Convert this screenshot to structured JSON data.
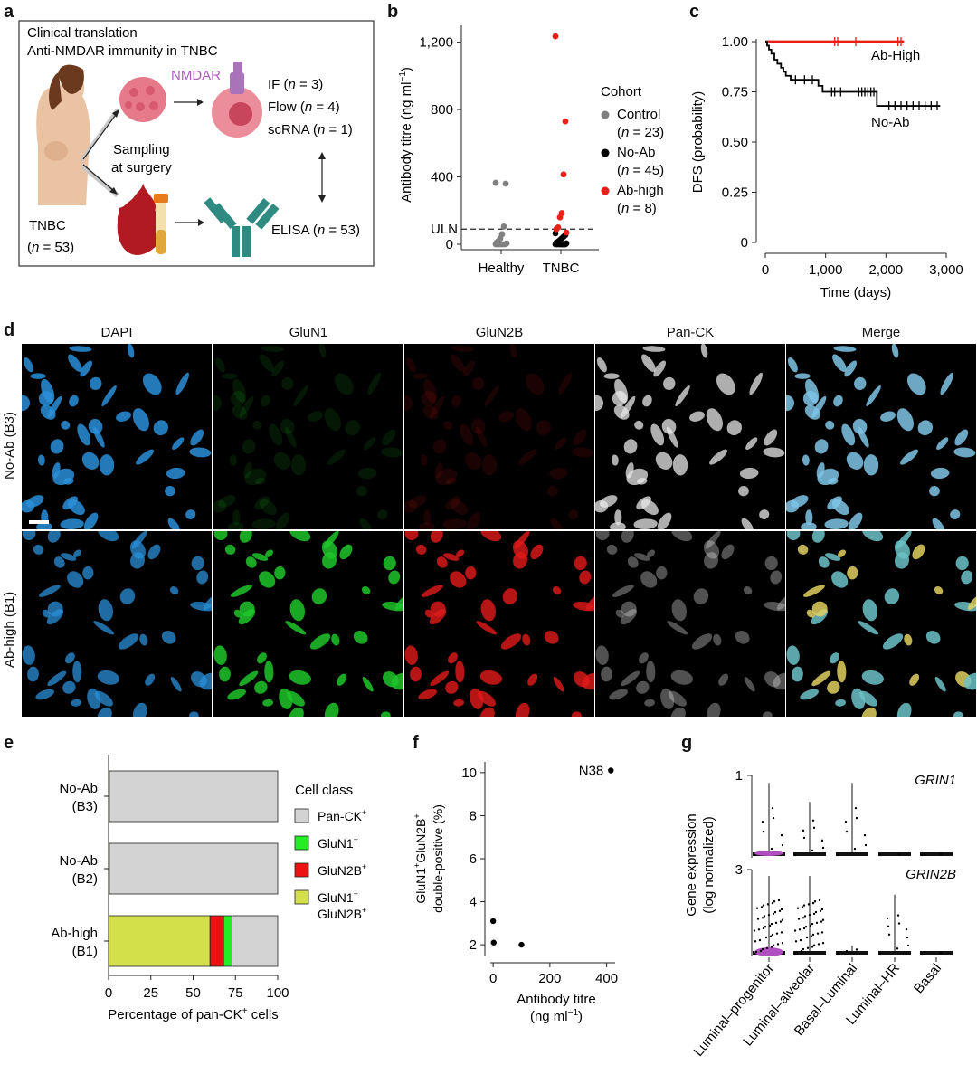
{
  "panels": {
    "a": "a",
    "b": "b",
    "c": "c",
    "d": "d",
    "e": "e",
    "f": "f",
    "g": "g"
  },
  "panel_a": {
    "title_line1": "Clinical translation",
    "title_line2": "Anti-NMDAR immunity in TNBC",
    "nmdar": "NMDAR",
    "if_label": "IF (",
    "n": "n",
    "if_n": " = 3)",
    "flow_label": "Flow (",
    "flow_n": " = 4)",
    "scrna_label": "scRNA (",
    "scrna_n": " = 1)",
    "sampling_line1": "Sampling",
    "sampling_line2": "at surgery",
    "tnbc": "TNBC",
    "tnbc_n": " = 53)",
    "elisa": "ELISA (",
    "elisa_n": " = 53)",
    "open_paren": "("
  },
  "chart_data": [
    {
      "id": "b",
      "type": "scatter",
      "ylabel": "Antibody titre (ng ml",
      "ylabel_sup": "−1",
      "ylabel_end": ")",
      "categories": [
        "Healthy",
        "TNBC"
      ],
      "yticks": [
        "0",
        "400",
        "800",
        "1,200"
      ],
      "ytick_values": [
        0,
        400,
        800,
        1200
      ],
      "ylim": [
        0,
        1300
      ],
      "uln_label": "ULN",
      "uln_value": 90,
      "legend_title": "Cohort",
      "series": [
        {
          "name": "Control",
          "n_label": "(n = 23)",
          "color": "#808080",
          "category": "Healthy",
          "values": [
            365,
            360,
            105,
            60,
            35,
            20,
            10,
            5,
            0,
            0,
            0,
            0,
            0,
            0
          ]
        },
        {
          "name": "No-Ab",
          "n_label": "(n = 45)",
          "color": "#000000",
          "category": "TNBC",
          "values": [
            65,
            55,
            45,
            35,
            25,
            15,
            10,
            5,
            0,
            0,
            0,
            0,
            0,
            0,
            0,
            0,
            0
          ]
        },
        {
          "name": "Ab-high",
          "n_label": "(n = 8)",
          "color": "#e8201a",
          "category": "TNBC",
          "values": [
            1235,
            730,
            415,
            185,
            160,
            100,
            90,
            70
          ]
        }
      ]
    },
    {
      "id": "c",
      "type": "line",
      "xlabel": "Time (days)",
      "ylabel": "DFS (probability)",
      "xticks": [
        "0",
        "1,000",
        "2,000",
        "3,000"
      ],
      "xtick_values": [
        0,
        1000,
        2000,
        3000
      ],
      "yticks": [
        "0",
        "0.25",
        "0.50",
        "0.75",
        "1.00"
      ],
      "ytick_values": [
        0,
        0.25,
        0.5,
        0.75,
        1.0
      ],
      "xlim": [
        0,
        3000
      ],
      "ylim": [
        0,
        1
      ],
      "series": [
        {
          "name": "Ab-High",
          "color": "#e8201a",
          "x": [
            0,
            2300
          ],
          "y": [
            1.0,
            1.0
          ],
          "censor_x": [
            1150,
            1200,
            1500,
            2200,
            2250
          ]
        },
        {
          "name": "No-Ab",
          "color": "#000000",
          "x": [
            0,
            30,
            60,
            100,
            150,
            200,
            260,
            300,
            340,
            420,
            880,
            950,
            1850,
            2900
          ],
          "y": [
            1.0,
            0.98,
            0.96,
            0.94,
            0.91,
            0.89,
            0.87,
            0.85,
            0.83,
            0.81,
            0.78,
            0.75,
            0.68,
            0.68
          ],
          "censor_x": [
            500,
            650,
            780,
            1100,
            1150,
            1250,
            1550,
            1600,
            1650,
            1700,
            1750,
            1800,
            2050,
            2150,
            2250,
            2350,
            2450,
            2550,
            2650,
            2750,
            2850
          ]
        }
      ]
    },
    {
      "id": "e",
      "type": "bar",
      "orientation": "horizontal",
      "stacked": true,
      "xlabel": "Percentage of pan-CK",
      "xlabel_sup": "+",
      "xlabel_end": " cells",
      "xticks": [
        "0",
        "25",
        "50",
        "75",
        "100"
      ],
      "xtick_values": [
        0,
        25,
        50,
        75,
        100
      ],
      "xlim": [
        0,
        100
      ],
      "categories": [
        [
          "No-Ab",
          "(B3)"
        ],
        [
          "No-Ab",
          "(B2)"
        ],
        [
          "Ab-high",
          "(B1)"
        ]
      ],
      "legend_title": "Cell class",
      "series": [
        {
          "name": "GluN1⁺GluN2B⁺",
          "legend_line1": "GluN1",
          "legend_line2": "GluN2B",
          "sup": "+",
          "color": "#d4e04a",
          "values": [
            0.5,
            0.5,
            60
          ]
        },
        {
          "name": "GluN2B⁺",
          "legend_line1": "GluN2B",
          "sup": "+",
          "color": "#ee1111",
          "values": [
            0,
            0,
            8
          ]
        },
        {
          "name": "GluN1⁺",
          "legend_line1": "GluN1",
          "sup": "+",
          "color": "#22ee22",
          "values": [
            0,
            0,
            5
          ]
        },
        {
          "name": "Pan-CK⁺",
          "legend_line1": "Pan-CK",
          "sup": "+",
          "color": "#d3d3d3",
          "values": [
            99.5,
            99.5,
            27
          ]
        }
      ]
    },
    {
      "id": "f",
      "type": "scatter",
      "xlabel_line1": "Antibody titre",
      "xlabel_line2": "(ng ml",
      "xlabel_sup": "−1",
      "xlabel_end": ")",
      "ylabel_line1_a": "GluN1",
      "ylabel_line1_b": "GluN2B",
      "ylabel_sup": "+",
      "ylabel_line2": "double-positive (%)",
      "xticks": [
        "0",
        "200",
        "400"
      ],
      "xtick_values": [
        0,
        200,
        400
      ],
      "yticks": [
        "2",
        "4",
        "6",
        "8",
        "10"
      ],
      "ytick_values": [
        2,
        4,
        6,
        8,
        10
      ],
      "xlim": [
        -10,
        430
      ],
      "ylim": [
        1.5,
        10.5
      ],
      "points": [
        {
          "x": 0,
          "y": 3.1
        },
        {
          "x": 2,
          "y": 2.1
        },
        {
          "x": 100,
          "y": 2.0
        },
        {
          "x": 415,
          "y": 10.1,
          "label": "N38"
        }
      ]
    },
    {
      "id": "g",
      "type": "violin",
      "ylabel_line1": "Gene expression",
      "ylabel_line2": "(log normalized)",
      "categories": [
        "Luminal–progenitor",
        "Luminal–alveolar",
        "Basal–Luminal",
        "Luminal–HR",
        "Basal"
      ],
      "genes": [
        {
          "name": "GRIN1",
          "ymax_label": "1",
          "ymax": 1,
          "violin_tops": [
            0.95,
            0.7,
            0.95,
            0.02,
            0.02
          ],
          "highlight_index": 0
        },
        {
          "name": "GRIN2B",
          "ymax_label": "3",
          "ymax": 3,
          "violin_tops": [
            2.9,
            2.9,
            0.3,
            2.2,
            0.05
          ],
          "highlight_index": 0
        }
      ]
    }
  ],
  "panel_d": {
    "channels": [
      "DAPI",
      "GluN1",
      "GluN2B",
      "Pan-CK",
      "Merge"
    ],
    "rows": [
      "No-Ab (B3)",
      "Ab-high (B1)"
    ],
    "colors": {
      "dapi": "#2a8fd8",
      "glun1": "#1fc52a",
      "glun2b": "#e21a1a",
      "panck": "#e8e8e8"
    }
  }
}
